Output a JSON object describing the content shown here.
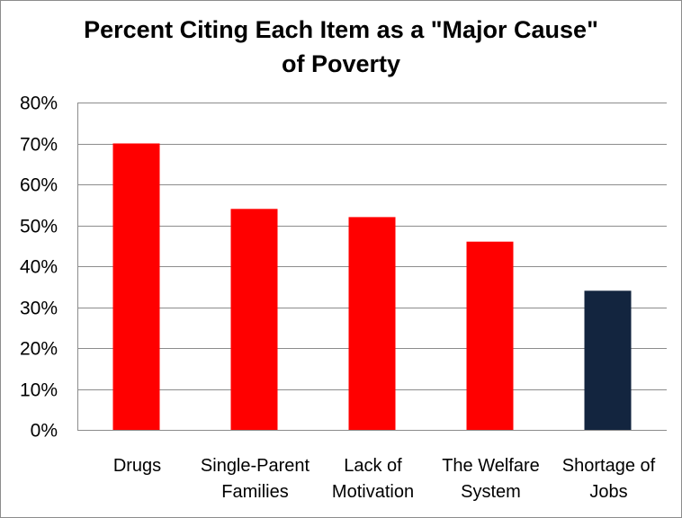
{
  "chart_data": {
    "type": "bar",
    "title_lines": [
      "Percent Citing Each Item as a \"Major Cause\"",
      "of Poverty"
    ],
    "categories": [
      [
        "Drugs"
      ],
      [
        "Single-Parent",
        "Families"
      ],
      [
        "Lack of",
        "Motivation"
      ],
      [
        "The Welfare",
        "System"
      ],
      [
        "Shortage of",
        "Jobs"
      ]
    ],
    "values": [
      70,
      54,
      52,
      46,
      34
    ],
    "bar_colors": [
      "#ff0000",
      "#ff0000",
      "#ff0000",
      "#ff0000",
      "#13253f"
    ],
    "ylim": [
      0,
      80
    ],
    "yticks": [
      0,
      10,
      20,
      30,
      40,
      50,
      60,
      70,
      80
    ],
    "ytick_labels": [
      "0%",
      "10%",
      "20%",
      "30%",
      "40%",
      "50%",
      "60%",
      "70%",
      "80%"
    ],
    "xlabel": "",
    "ylabel": "",
    "grid": true,
    "legend": "none"
  }
}
